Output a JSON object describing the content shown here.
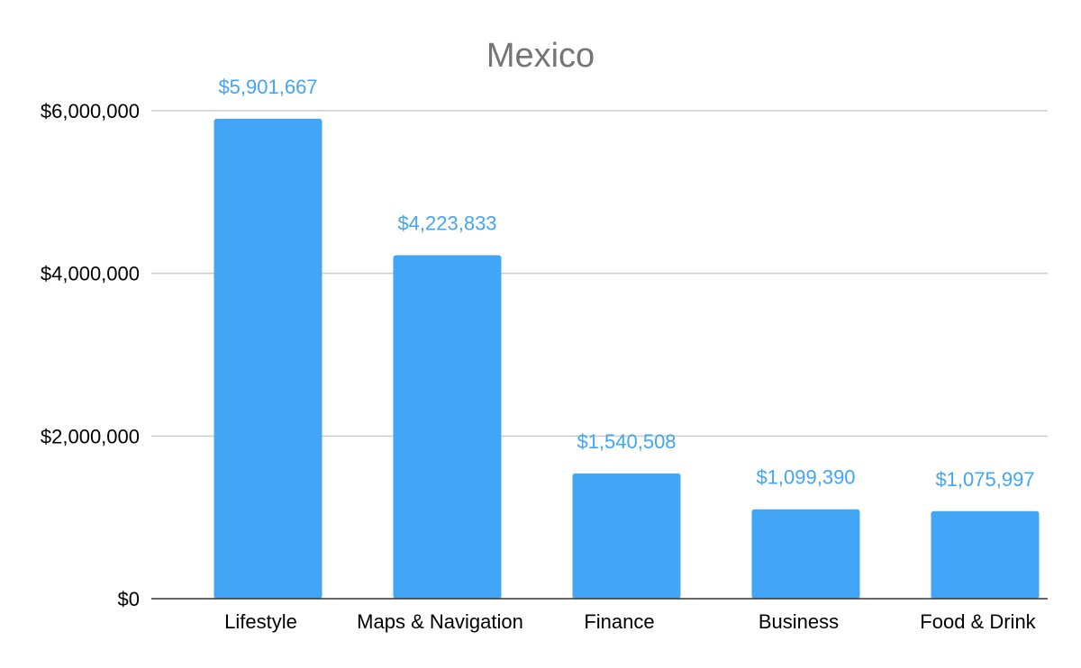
{
  "chart_data": {
    "type": "bar",
    "title": "Mexico",
    "xlabel": "",
    "ylabel": "",
    "categories": [
      "Lifestyle",
      "Maps & Navigation",
      "Finance",
      "Business",
      "Food & Drink"
    ],
    "values": [
      5901667,
      4223833,
      1540508,
      1099390,
      1075997
    ],
    "data_labels": [
      "$5,901,667",
      "$4,223,833",
      "$1,540,508",
      "$1,099,390",
      "$1,075,997"
    ],
    "ylim": [
      0,
      6000000
    ],
    "yticks": [
      0,
      2000000,
      4000000,
      6000000
    ],
    "ytick_labels": [
      "$0",
      "$2,000,000",
      "$4,000,000",
      "$6,000,000"
    ],
    "grid": true,
    "legend": "none",
    "colors": {
      "bar": "#42a5f5",
      "data_label": "#42a5f5",
      "grid": "#cccccc",
      "axis": "#333333",
      "title": "#757575"
    }
  }
}
